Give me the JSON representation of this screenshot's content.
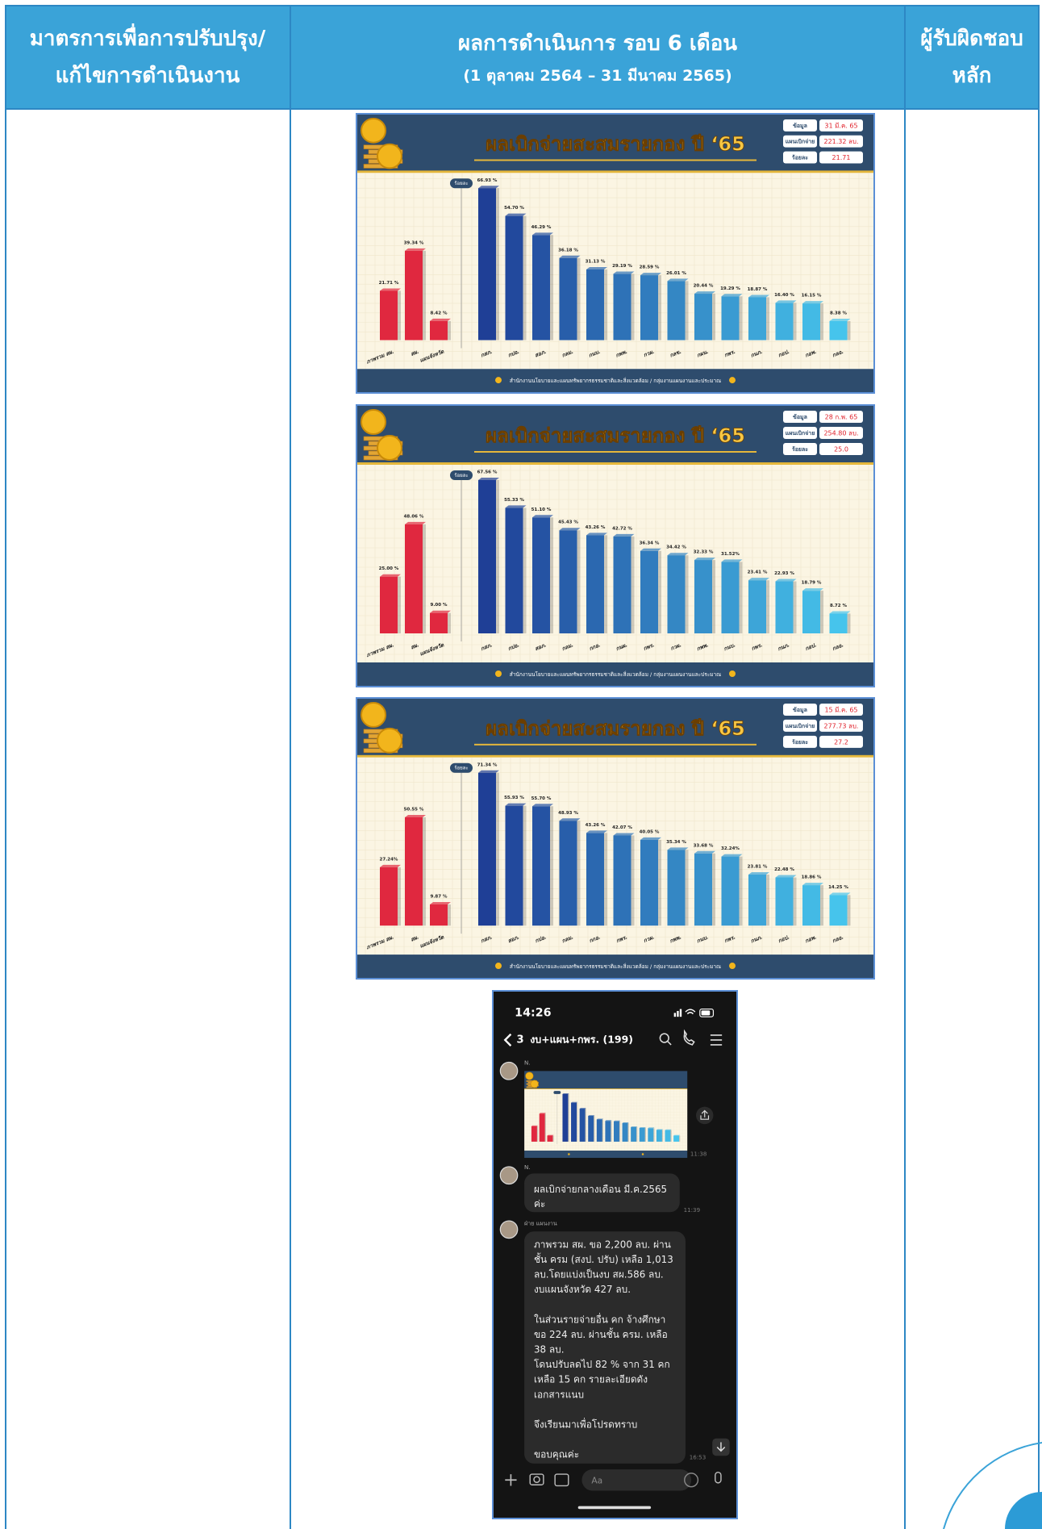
{
  "table": {
    "headers": [
      {
        "lines": [
          "มาตรการเพื่อการปรับปรุง/",
          "แก้ไขการดำเนินงาน"
        ]
      },
      {
        "lines": [
          "ผลการดำเนินการ รอบ 6 เดือน",
          "(1 ตุลาคม 2564 – 31 มีนาคม 2565)"
        ]
      },
      {
        "lines": [
          "ผู้รับผิดชอบ",
          "หลัก"
        ]
      }
    ]
  },
  "images": [
    {
      "type": "bar",
      "title": "ผลเบิกจ่ายสะสมรายกอง ปี ‘65",
      "info": [
        {
          "label": "ข้อมูล",
          "value": "31 มี.ค. 65"
        },
        {
          "label": "แผนเบิกจ่าย",
          "value": "221.32 ลบ."
        },
        {
          "label": "ร้อยละ",
          "value": "21.71"
        }
      ],
      "axis_label": "ร้อยละ",
      "footer": "สำนักงานนโยบายและแผนทรัพยากรธรรมชาติและสิ่งแวดล้อม / กลุ่มงานแผนงานและประมาณ",
      "groups": [
        {
          "color": "#e0283f",
          "categories": [
            "ภาพรวม สผ.",
            "สผ.",
            "แผนจังหวัด"
          ],
          "values": [
            21.71,
            39.34,
            8.42
          ],
          "value_labels": [
            "21.71 %",
            "39.34 %",
            "8.42 %"
          ]
        },
        {
          "color": "#1f3f96",
          "color_to": "#46c4ec",
          "categories": [
            "กสภ.",
            "กปอ.",
            "สอภ.",
            "กลม.",
            "กนบ.",
            "กพพ.",
            "กวผ.",
            "กลข.",
            "กผน.",
            "กพร.",
            "กนภ.",
            "กอป.",
            "กอพ.",
            "กลอ."
          ],
          "values": [
            66.93,
            54.7,
            46.29,
            36.18,
            31.13,
            29.19,
            28.59,
            26.01,
            20.44,
            19.29,
            18.87,
            16.4,
            16.15,
            8.38
          ],
          "value_labels": [
            "66.93 %",
            "54.70 %",
            "46.29 %",
            "36.18 %",
            "31.13 %",
            "29.19 %",
            "28.59 %",
            "26.01 %",
            "20.44 %",
            "19.29 %",
            "18.87 %",
            "16.40 %",
            "16.15 %",
            "8.38 %"
          ]
        }
      ]
    },
    {
      "type": "bar",
      "title": "ผลเบิกจ่ายสะสมรายกอง ปี ‘65",
      "info": [
        {
          "label": "ข้อมูล",
          "value": "28 ก.พ. 65"
        },
        {
          "label": "แผนเบิกจ่าย",
          "value": "254.80 ลบ."
        },
        {
          "label": "ร้อยละ",
          "value": "25.0"
        }
      ],
      "axis_label": "ร้อยละ",
      "footer": "สำนักงานนโยบายและแผนทรัพยากรธรรมชาติและสิ่งแวดล้อม / กลุ่มงานแผนงานและประมาณ",
      "groups": [
        {
          "color": "#e0283f",
          "categories": [
            "ภาพรวม สผ.",
            "สผ.",
            "แผนจังหวัด"
          ],
          "values": [
            25.0,
            48.06,
            9.0
          ],
          "value_labels": [
            "25.00 %",
            "48.06 %",
            "9.00 %"
          ]
        },
        {
          "color": "#1f3f96",
          "color_to": "#46c4ec",
          "categories": [
            "กสภ.",
            "กปอ.",
            "สอภ.",
            "กลม.",
            "กกอ.",
            "กนผ.",
            "กพร.",
            "กวผ.",
            "กพพ.",
            "กนบ.",
            "กพร.",
            "กนภ.",
            "กอป.",
            "กลอ."
          ],
          "values": [
            67.56,
            55.33,
            51.1,
            45.43,
            43.26,
            42.72,
            36.34,
            34.42,
            32.33,
            31.52,
            23.41,
            22.93,
            18.79,
            8.72
          ],
          "value_labels": [
            "67.56 %",
            "55.33 %",
            "51.10 %",
            "45.43 %",
            "43.26 %",
            "42.72 %",
            "36.34 %",
            "34.42 %",
            "32.33 %",
            "31.52%",
            "23.41 %",
            "22.93 %",
            "18.79 %",
            "8.72 %"
          ]
        }
      ]
    },
    {
      "type": "bar",
      "title": "ผลเบิกจ่ายสะสมรายกอง ปี ‘65",
      "info": [
        {
          "label": "ข้อมูล",
          "value": "15 มี.ค. 65"
        },
        {
          "label": "แผนเบิกจ่าย",
          "value": "277.73 ลบ."
        },
        {
          "label": "ร้อยละ",
          "value": "27.2"
        }
      ],
      "axis_label": "ร้อยละ",
      "footer": "สำนักงานนโยบายและแผนทรัพยากรธรรมชาติและสิ่งแวดล้อม / กลุ่มงานแผนงานและประมาณ",
      "groups": [
        {
          "color": "#e0283f",
          "categories": [
            "ภาพรวม สผ.",
            "สผ.",
            "แผนจังหวัด"
          ],
          "values": [
            27.24,
            50.55,
            9.87
          ],
          "value_labels": [
            "27.24%",
            "50.55 %",
            "9.87 %"
          ]
        },
        {
          "color": "#1f3f96",
          "color_to": "#46c4ec",
          "categories": [
            "กสภ.",
            "สอภ.",
            "กปอ.",
            "กลม.",
            "กกอ.",
            "กพร.",
            "กวผ.",
            "กพพ.",
            "กนบ.",
            "กพร.",
            "กนภ.",
            "กอป.",
            "กอพ.",
            "กลอ."
          ],
          "values": [
            71.34,
            55.93,
            55.7,
            48.93,
            43.26,
            42.07,
            40.05,
            35.34,
            33.68,
            32.24,
            23.81,
            22.48,
            18.86,
            14.25
          ],
          "value_labels": [
            "71.34 %",
            "55.93 %",
            "55.70 %",
            "48.93 %",
            "43.26 %",
            "42.07 %",
            "40.05 %",
            "35.34 %",
            "33.68 %",
            "32.24%",
            "23.81 %",
            "22.48 %",
            "18.86 %",
            "14.25 %"
          ]
        }
      ]
    }
  ],
  "chat": {
    "time": "14:26",
    "back_count": "3",
    "group_name": "งบ+แผน+กพร. (199)",
    "messages": [
      {
        "sender": "N.",
        "time": "11:38"
      },
      {
        "sender": "N.",
        "lines": [
          "ผลเบิกจ่ายกลางเดือน มี.ค.2565",
          "ค่ะ"
        ],
        "time": "11:39"
      },
      {
        "sender": "ฝ่าย แผนงาน",
        "paragraphs": [
          [
            "ภาพรวม สผ. ขอ 2,200 ลบ. ผ่าน",
            "ชั้น ครม (สงป. ปรับ) เหลือ 1,013",
            "ลบ.โดยแบ่งเป็นงบ สผ.586 ลบ.",
            "งบแผนจังหวัด 427 ลบ."
          ],
          [
            "ในส่วนรายจ่ายอื่น คก จ้างศึกษา",
            "ขอ 224 ลบ. ผ่านชั้น ครม. เหลือ",
            "38 ลบ.",
            "โดนปรับลดไป 82 % จาก 31 คก",
            "เหลือ 15 คก รายละเอียดดัง",
            "เอกสารแนบ"
          ],
          [
            "จึงเรียนมาเพื่อโปรดทราบ"
          ],
          [
            "ขอบคุณค่ะ"
          ]
        ],
        "time": "16:53"
      }
    ],
    "input_placeholder": "Aa"
  }
}
